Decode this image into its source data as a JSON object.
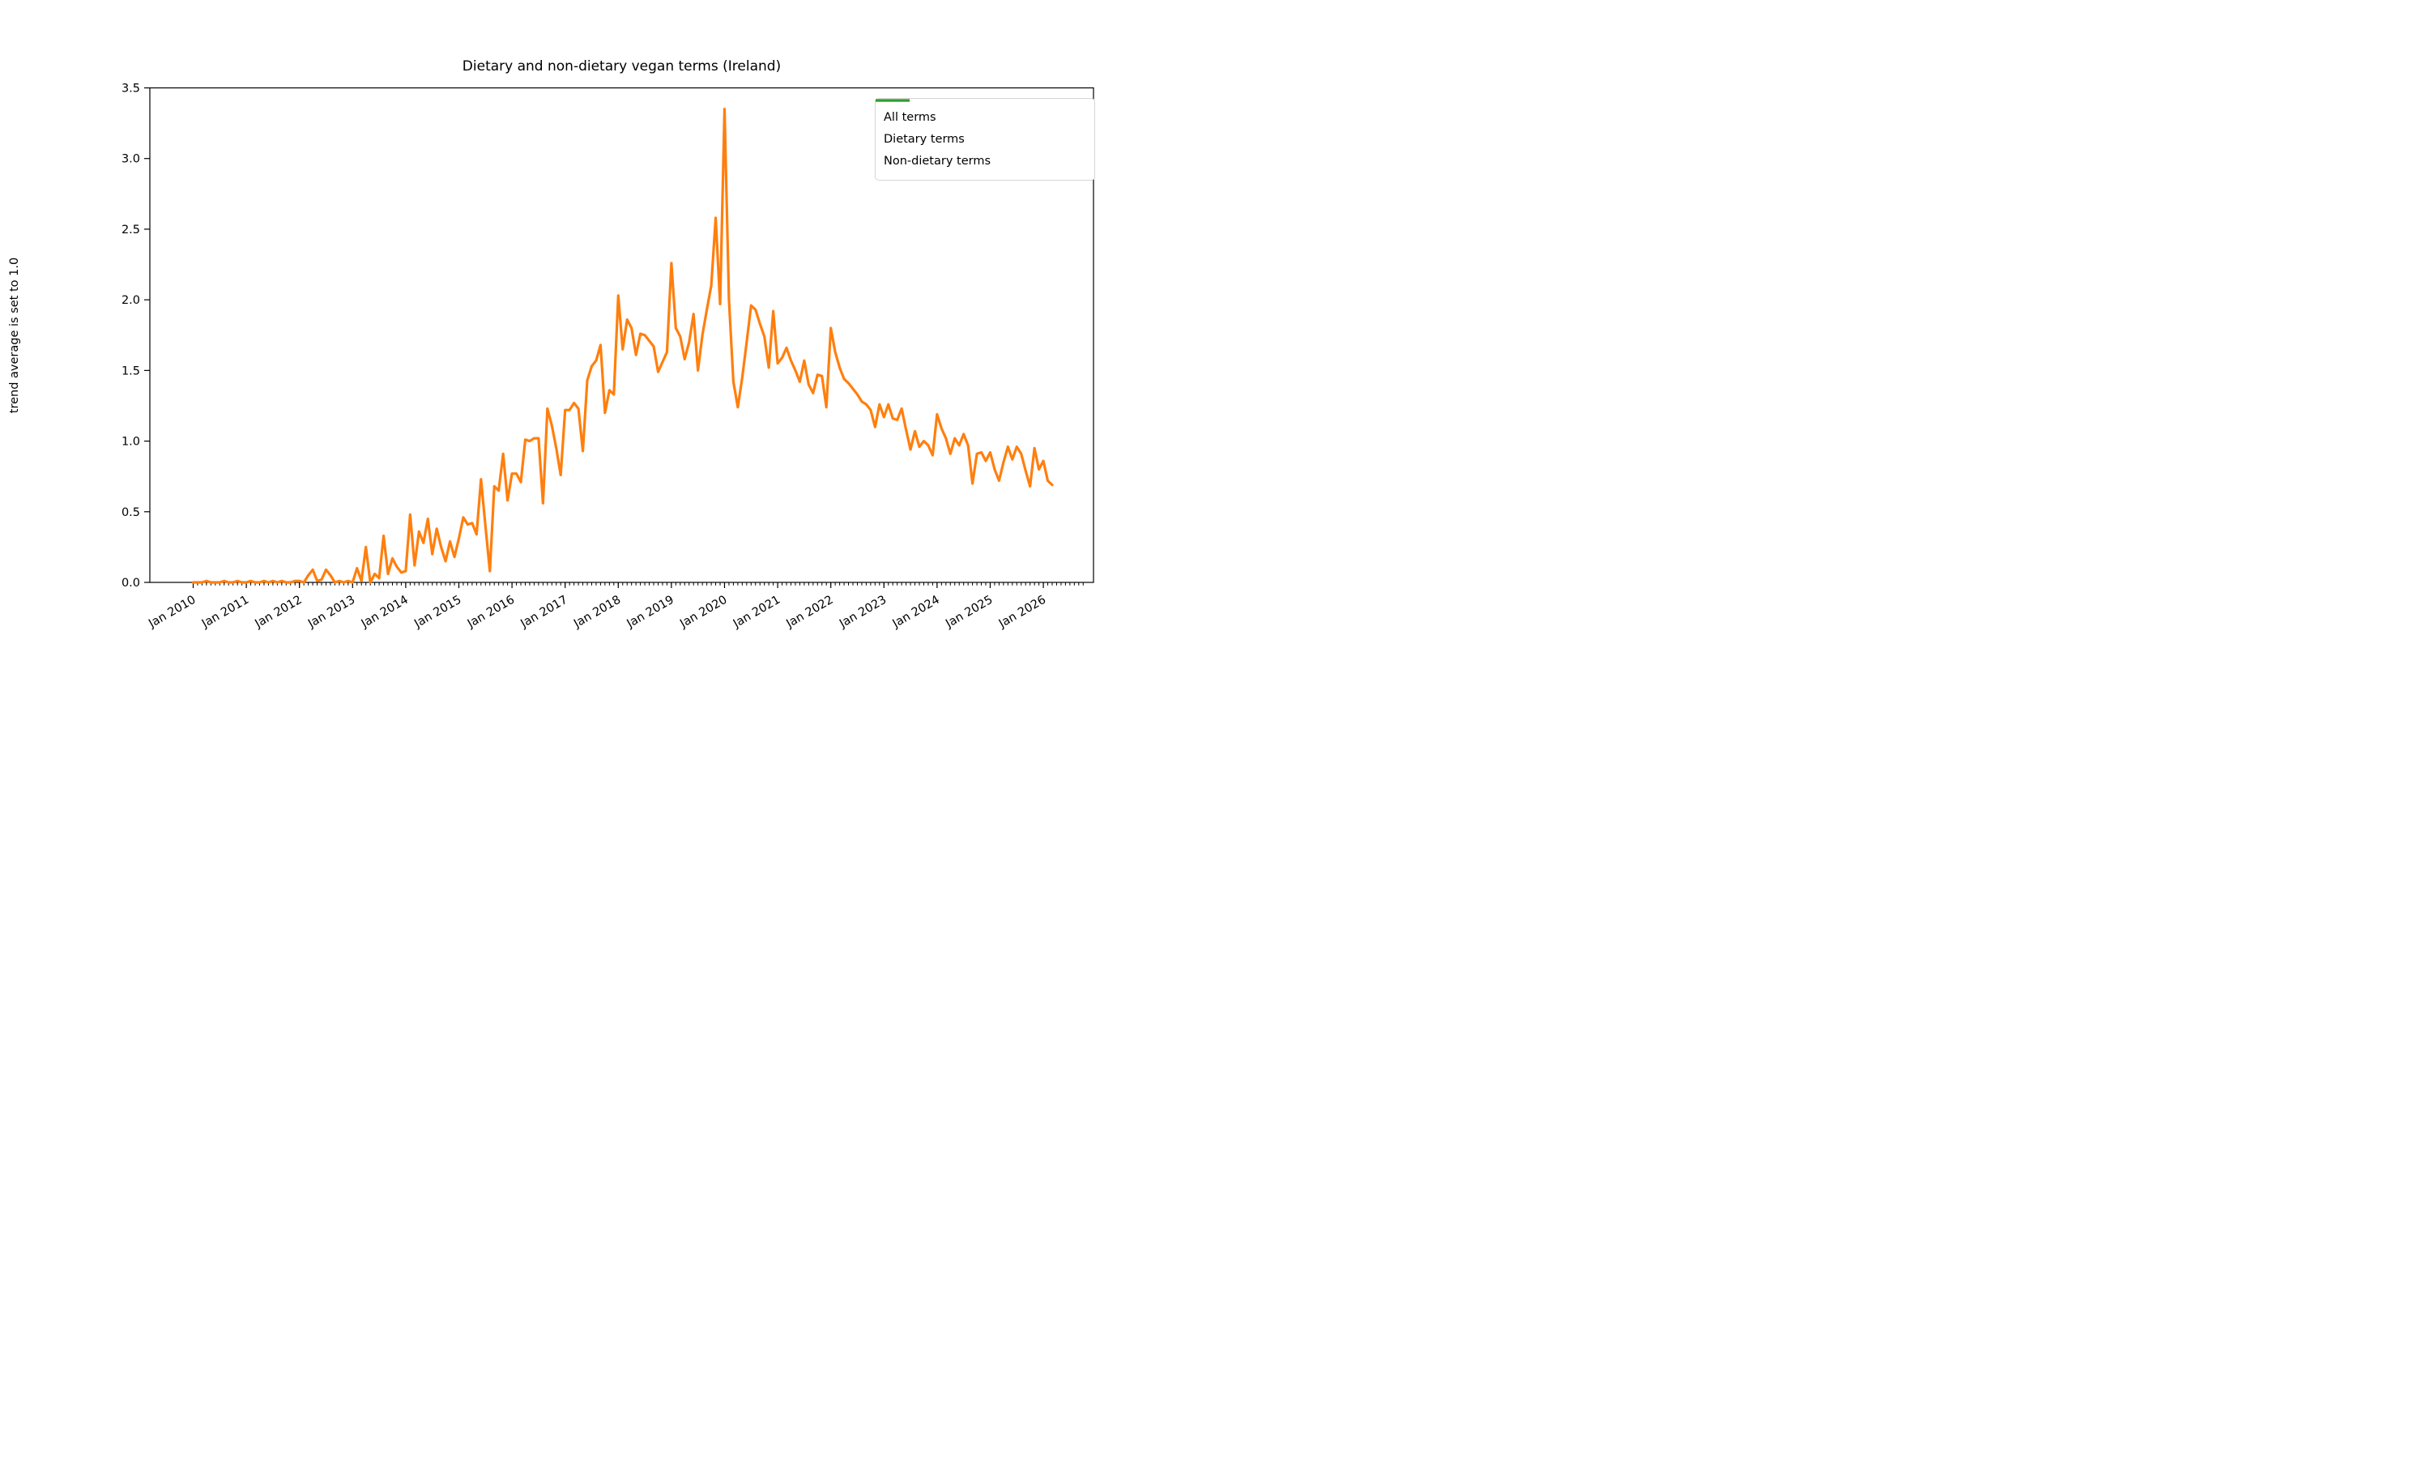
{
  "figure": {
    "background_color": "#ffffff",
    "axes_color": "#000000"
  },
  "chart_data": {
    "type": "line",
    "title": "Dietary and non-dietary vegan terms (Ireland)",
    "xlabel": "",
    "ylabel": "trend average is set to 1.0",
    "ylim": [
      0.0,
      3.5
    ],
    "y_ticks": [
      "0.0",
      "0.5",
      "1.0",
      "1.5",
      "2.0",
      "2.5",
      "3.0",
      "3.5"
    ],
    "x_tick_labels": [
      "Jan 2010",
      "Jan 2011",
      "Jan 2012",
      "Jan 2013",
      "Jan 2014",
      "Jan 2015",
      "Jan 2016",
      "Jan 2017",
      "Jan 2018",
      "Jan 2019",
      "Jan 2020",
      "Jan 2021",
      "Jan 2022",
      "Jan 2023",
      "Jan 2024",
      "Jan 2025",
      "Jan 2026"
    ],
    "x_tick_rotation_deg": 30,
    "x_minor_ticks": "monthly",
    "x_start": "Jan 2010",
    "x_end": "Mar 2026",
    "x_frequency": "monthly",
    "grid": false,
    "legend": {
      "position": "upper right",
      "entries": [
        {
          "label": "All terms",
          "color": "#1f77b4",
          "style": "dashed",
          "visible_in_plot": false
        },
        {
          "label": "Dietary terms",
          "color": "#ff7f0e",
          "style": "solid",
          "visible_in_plot": true
        },
        {
          "label": "Non-dietary terms",
          "color": "#2ca02c",
          "style": "solid",
          "visible_in_plot": false
        }
      ]
    },
    "series": [
      {
        "name": "Dietary terms",
        "color": "#ff7f0e",
        "values": [
          0.0,
          0.0,
          0.0,
          0.01,
          0.0,
          0.0,
          0.0,
          0.01,
          0.0,
          0.0,
          0.01,
          0.0,
          0.0,
          0.01,
          0.0,
          0.0,
          0.01,
          0.0,
          0.01,
          0.0,
          0.01,
          0.0,
          0.0,
          0.01,
          0.01,
          0.0,
          0.05,
          0.09,
          0.01,
          0.02,
          0.09,
          0.05,
          0.0,
          0.01,
          0.0,
          0.01,
          0.0,
          0.1,
          0.01,
          0.25,
          0.0,
          0.06,
          0.03,
          0.33,
          0.06,
          0.17,
          0.11,
          0.07,
          0.08,
          0.48,
          0.12,
          0.36,
          0.28,
          0.45,
          0.2,
          0.38,
          0.25,
          0.15,
          0.29,
          0.18,
          0.31,
          0.46,
          0.41,
          0.42,
          0.34,
          0.73,
          0.4,
          0.08,
          0.68,
          0.65,
          0.91,
          0.58,
          0.77,
          0.77,
          0.71,
          1.01,
          1.0,
          1.02,
          1.02,
          0.56,
          1.23,
          1.11,
          0.95,
          0.76,
          1.22,
          1.22,
          1.27,
          1.23,
          0.93,
          1.43,
          1.53,
          1.57,
          1.68,
          1.2,
          1.36,
          1.33,
          2.03,
          1.65,
          1.86,
          1.8,
          1.61,
          1.76,
          1.75,
          1.71,
          1.67,
          1.49,
          1.56,
          1.63,
          2.26,
          1.8,
          1.74,
          1.58,
          1.7,
          1.9,
          1.5,
          1.75,
          1.93,
          2.1,
          2.58,
          1.97,
          3.35,
          2.0,
          1.42,
          1.24,
          1.45,
          1.7,
          1.96,
          1.93,
          1.83,
          1.74,
          1.52,
          1.92,
          1.55,
          1.59,
          1.66,
          1.57,
          1.5,
          1.42,
          1.57,
          1.4,
          1.34,
          1.47,
          1.46,
          1.24,
          1.8,
          1.63,
          1.52,
          1.44,
          1.41,
          1.37,
          1.33,
          1.28,
          1.26,
          1.22,
          1.1,
          1.26,
          1.17,
          1.26,
          1.16,
          1.15,
          1.23,
          1.08,
          0.94,
          1.07,
          0.96,
          1.0,
          0.97,
          0.9,
          1.19,
          1.09,
          1.02,
          0.91,
          1.02,
          0.97,
          1.05,
          0.97,
          0.7,
          0.91,
          0.92,
          0.86,
          0.92,
          0.8,
          0.72,
          0.85,
          0.96,
          0.87,
          0.96,
          0.91,
          0.79,
          0.68,
          0.95,
          0.8,
          0.86,
          0.72,
          0.69
        ]
      }
    ]
  }
}
